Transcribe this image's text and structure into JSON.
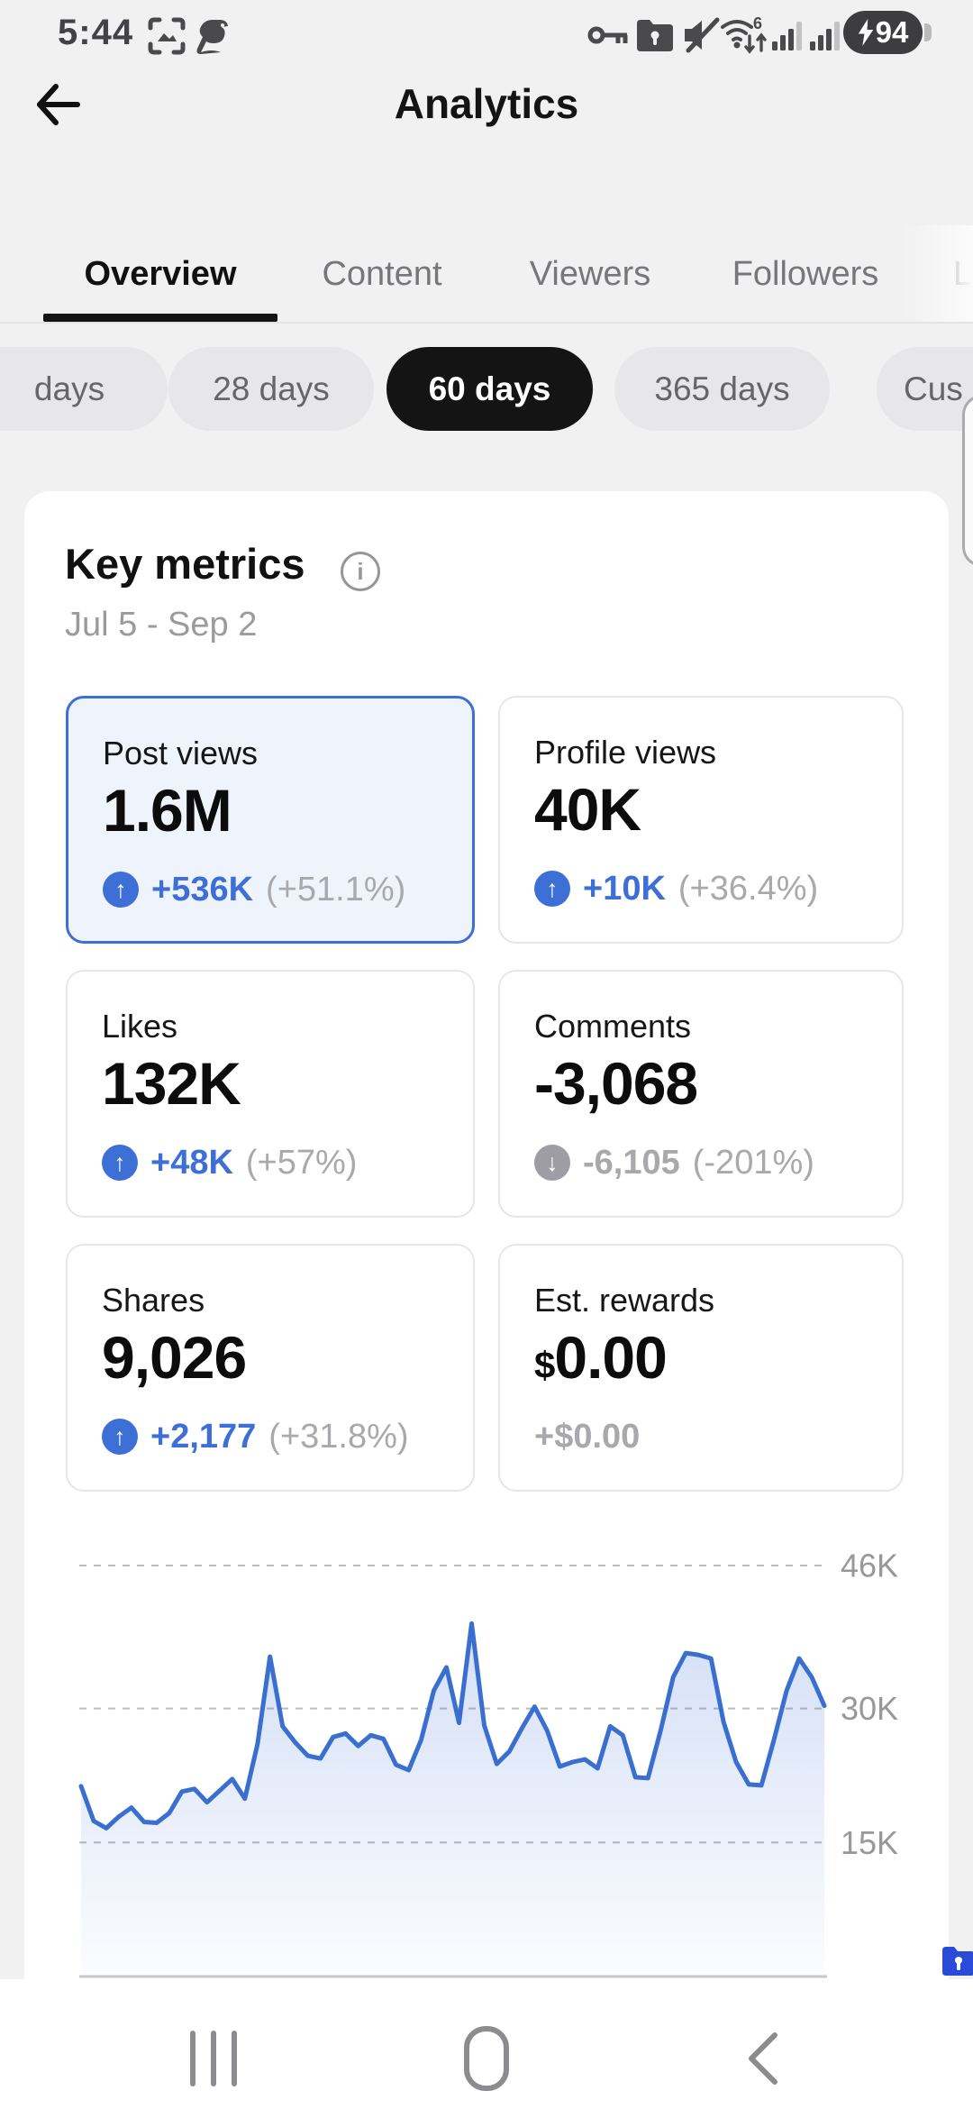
{
  "status_bar": {
    "time": "5:44",
    "battery": "94",
    "icons": [
      "screenshot-icon",
      "app-mascot-icon",
      "key-icon",
      "secure-folder-icon",
      "mute-icon",
      "wifi6-icon",
      "signal-icon",
      "signal-icon",
      "battery-charging"
    ]
  },
  "header": {
    "title": "Analytics"
  },
  "tabs": {
    "items": [
      "Overview",
      "Content",
      "Viewers",
      "Followers",
      "L"
    ],
    "active": "Overview"
  },
  "filters": {
    "items": [
      "days",
      "28 days",
      "60 days",
      "365 days",
      "Cus"
    ],
    "selected": "60 days"
  },
  "key_metrics": {
    "title": "Key metrics",
    "date_range": "Jul 5 - Sep 2",
    "cards": [
      {
        "label": "Post views",
        "value_prefix": "",
        "value": "1.6M",
        "delta": "+536K",
        "delta_pct": "(+51.1%)",
        "direction": "up",
        "selected": true
      },
      {
        "label": "Profile views",
        "value_prefix": "",
        "value": "40K",
        "delta": "+10K",
        "delta_pct": "(+36.4%)",
        "direction": "up",
        "selected": false
      },
      {
        "label": "Likes",
        "value_prefix": "",
        "value": "132K",
        "delta": "+48K",
        "delta_pct": "(+57%)",
        "direction": "up",
        "selected": false
      },
      {
        "label": "Comments",
        "value_prefix": "",
        "value": "-3,068",
        "delta": "-6,105",
        "delta_pct": "(-201%)",
        "direction": "down",
        "selected": false
      },
      {
        "label": "Shares",
        "value_prefix": "",
        "value": "9,026",
        "delta": "+2,177",
        "delta_pct": "(+31.8%)",
        "direction": "up",
        "selected": false
      },
      {
        "label": "Est. rewards",
        "value_prefix": "$",
        "value": "0.00",
        "delta": "+$0.00",
        "delta_pct": "",
        "direction": "none",
        "selected": false
      }
    ]
  },
  "chart_data": {
    "type": "area",
    "title": "Post views per day (Jul 5 - Sep 2, 60 days)",
    "xlabel": "",
    "ylabel": "",
    "x_points": 60,
    "unit": "K views",
    "series": [
      {
        "name": "Post views",
        "values_k": [
          21.3,
          17.4,
          16.6,
          17.9,
          18.9,
          17.3,
          17.2,
          18.3,
          20.7,
          21.0,
          19.5,
          20.8,
          22.1,
          19.9,
          26.0,
          35.8,
          28.0,
          26.2,
          24.7,
          24.4,
          26.8,
          27.2,
          25.8,
          27.0,
          26.6,
          23.7,
          23.1,
          26.5,
          32.0,
          34.6,
          28.4,
          39.5,
          28.1,
          23.8,
          25.2,
          27.8,
          30.2,
          27.5,
          23.5,
          24.0,
          24.3,
          23.3,
          28.0,
          27.0,
          22.3,
          22.2,
          27.5,
          33.5,
          36.2,
          36.0,
          35.6,
          28.5,
          24.0,
          21.5,
          21.4,
          26.5,
          32.0,
          35.6,
          33.5,
          30.3
        ]
      }
    ],
    "yticks": [
      {
        "v": 46,
        "label": "46K"
      },
      {
        "v": 30,
        "label": "30K"
      },
      {
        "v": 15,
        "label": "15K"
      }
    ],
    "ylim_k": [
      0,
      50
    ],
    "grid": "dashed-horizontal",
    "legend": false,
    "line_color": "#3a6fd0",
    "fill_color": "#3d6fd6"
  },
  "navbar": {
    "items": [
      "recents",
      "home",
      "back"
    ]
  }
}
